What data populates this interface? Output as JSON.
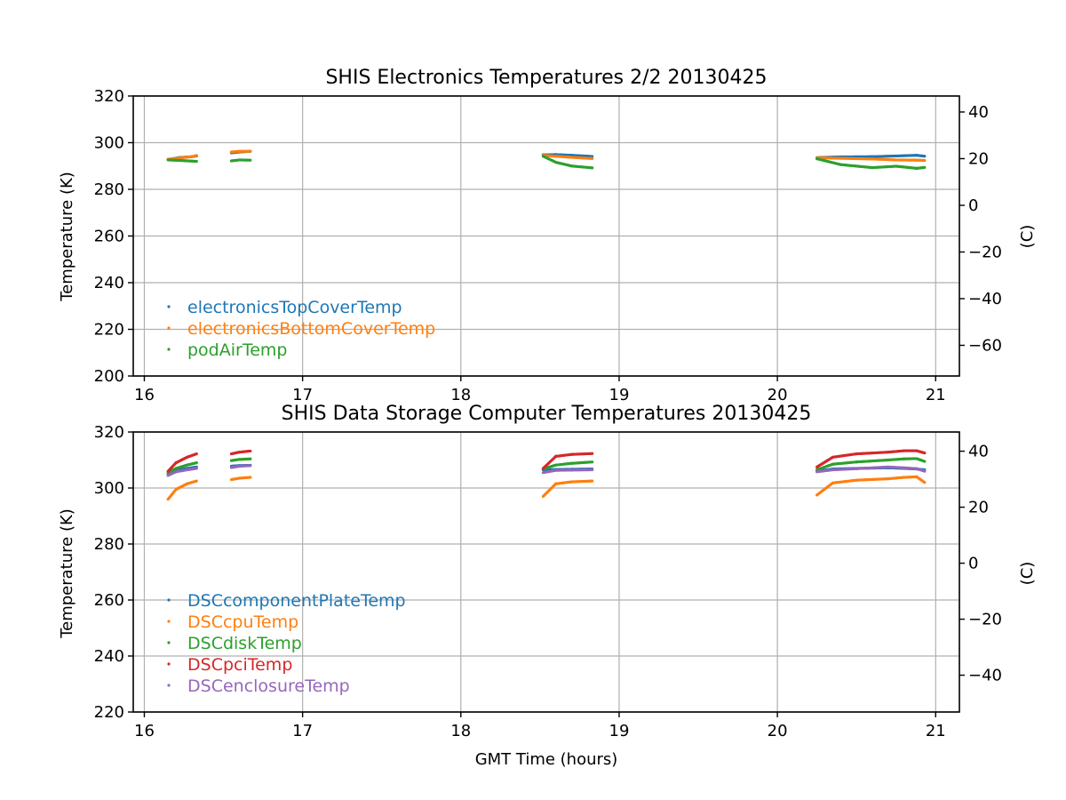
{
  "chart_data": [
    {
      "type": "scatter",
      "title": "SHIS Electronics Temperatures 2/2 20130425",
      "xlabel": "",
      "ylabel": "Temperature (K)",
      "ylabel_right": "(C)",
      "xlim": [
        15.93,
        21.15
      ],
      "ylim": [
        200,
        320
      ],
      "xticks": [
        "16",
        "17",
        "18",
        "19",
        "20",
        "21"
      ],
      "yticks": [
        "200",
        "220",
        "240",
        "260",
        "280",
        "300",
        "320"
      ],
      "yticks_right": [
        "−60",
        "−40",
        "−20",
        "0",
        "20",
        "40"
      ],
      "grid": true,
      "legend_position": "lower-left",
      "series": [
        {
          "name": "electronicsTopCoverTemp",
          "color": "#1f77b4",
          "segments": [
            [
              [
                16.15,
                292.8
              ],
              [
                16.22,
                293.6
              ],
              [
                16.3,
                294.0
              ],
              [
                16.33,
                294.3
              ]
            ],
            [
              [
                16.55,
                295.6
              ],
              [
                16.6,
                296.0
              ],
              [
                16.67,
                296.3
              ]
            ],
            [
              [
                18.52,
                294.8
              ],
              [
                18.6,
                294.9
              ],
              [
                18.7,
                294.6
              ],
              [
                18.83,
                294.1
              ]
            ],
            [
              [
                20.25,
                293.6
              ],
              [
                20.4,
                293.9
              ],
              [
                20.6,
                294.0
              ],
              [
                20.75,
                294.3
              ],
              [
                20.88,
                294.6
              ],
              [
                20.93,
                294.2
              ]
            ]
          ]
        },
        {
          "name": "electronicsBottomCoverTemp",
          "color": "#ff7f0e",
          "segments": [
            [
              [
                16.15,
                292.9
              ],
              [
                16.22,
                293.4
              ],
              [
                16.3,
                294.0
              ],
              [
                16.33,
                294.5
              ]
            ],
            [
              [
                16.55,
                296.0
              ],
              [
                16.6,
                296.3
              ],
              [
                16.67,
                296.3
              ]
            ],
            [
              [
                18.52,
                294.6
              ],
              [
                18.6,
                294.2
              ],
              [
                18.7,
                293.7
              ],
              [
                18.83,
                293.2
              ]
            ],
            [
              [
                20.25,
                293.5
              ],
              [
                20.4,
                293.3
              ],
              [
                20.6,
                293.0
              ],
              [
                20.75,
                292.6
              ],
              [
                20.88,
                292.5
              ],
              [
                20.93,
                292.4
              ]
            ]
          ]
        },
        {
          "name": "podAirTemp",
          "color": "#2ca02c",
          "segments": [
            [
              [
                16.15,
                292.6
              ],
              [
                16.22,
                292.4
              ],
              [
                16.3,
                292.1
              ],
              [
                16.33,
                292.0
              ]
            ],
            [
              [
                16.55,
                292.2
              ],
              [
                16.6,
                292.6
              ],
              [
                16.67,
                292.5
              ]
            ],
            [
              [
                18.52,
                294.2
              ],
              [
                18.6,
                291.6
              ],
              [
                18.7,
                290.0
              ],
              [
                18.83,
                289.2
              ]
            ],
            [
              [
                20.25,
                293.1
              ],
              [
                20.4,
                290.6
              ],
              [
                20.6,
                289.3
              ],
              [
                20.75,
                289.9
              ],
              [
                20.88,
                289.0
              ],
              [
                20.93,
                289.4
              ]
            ]
          ]
        }
      ]
    },
    {
      "type": "scatter",
      "title": "SHIS Data Storage Computer Temperatures 20130425",
      "xlabel": "GMT Time (hours)",
      "ylabel": "Temperature (K)",
      "ylabel_right": "(C)",
      "xlim": [
        15.93,
        21.15
      ],
      "ylim": [
        220,
        320
      ],
      "xticks": [
        "16",
        "17",
        "18",
        "19",
        "20",
        "21"
      ],
      "yticks": [
        "220",
        "240",
        "260",
        "280",
        "300",
        "320"
      ],
      "yticks_right": [
        "−40",
        "−20",
        "0",
        "20",
        "40"
      ],
      "grid": true,
      "legend_position": "lower-left",
      "series": [
        {
          "name": "DSCcomponentPlateTemp",
          "color": "#1f77b4",
          "segments": [
            [
              [
                16.15,
                305.0
              ],
              [
                16.2,
                306.3
              ],
              [
                16.27,
                307.0
              ],
              [
                16.33,
                307.5
              ]
            ],
            [
              [
                16.55,
                307.8
              ],
              [
                16.6,
                308.0
              ],
              [
                16.67,
                308.1
              ]
            ],
            [
              [
                18.52,
                306.5
              ],
              [
                18.6,
                306.6
              ],
              [
                18.7,
                306.7
              ],
              [
                18.83,
                306.8
              ]
            ],
            [
              [
                20.25,
                306.0
              ],
              [
                20.35,
                306.8
              ],
              [
                20.5,
                307.0
              ],
              [
                20.7,
                307.2
              ],
              [
                20.8,
                307.0
              ],
              [
                20.88,
                306.8
              ],
              [
                20.93,
                306.5
              ]
            ]
          ]
        },
        {
          "name": "DSCcpuTemp",
          "color": "#ff7f0e",
          "segments": [
            [
              [
                16.15,
                296.0
              ],
              [
                16.2,
                299.5
              ],
              [
                16.27,
                301.5
              ],
              [
                16.33,
                302.5
              ]
            ],
            [
              [
                16.55,
                303.0
              ],
              [
                16.6,
                303.5
              ],
              [
                16.67,
                303.8
              ]
            ],
            [
              [
                18.52,
                297.0
              ],
              [
                18.6,
                301.5
              ],
              [
                18.7,
                302.2
              ],
              [
                18.83,
                302.5
              ]
            ],
            [
              [
                20.25,
                297.5
              ],
              [
                20.35,
                301.8
              ],
              [
                20.5,
                302.8
              ],
              [
                20.7,
                303.3
              ],
              [
                20.8,
                303.8
              ],
              [
                20.88,
                304.0
              ],
              [
                20.93,
                302.0
              ]
            ]
          ]
        },
        {
          "name": "DSCdiskTemp",
          "color": "#2ca02c",
          "segments": [
            [
              [
                16.15,
                305.5
              ],
              [
                16.2,
                307.0
              ],
              [
                16.27,
                308.2
              ],
              [
                16.33,
                309.0
              ]
            ],
            [
              [
                16.55,
                309.8
              ],
              [
                16.6,
                310.2
              ],
              [
                16.67,
                310.4
              ]
            ],
            [
              [
                18.52,
                306.8
              ],
              [
                18.6,
                308.2
              ],
              [
                18.7,
                308.8
              ],
              [
                18.83,
                309.3
              ]
            ],
            [
              [
                20.25,
                306.5
              ],
              [
                20.35,
                308.5
              ],
              [
                20.5,
                309.3
              ],
              [
                20.7,
                310.0
              ],
              [
                20.8,
                310.4
              ],
              [
                20.88,
                310.5
              ],
              [
                20.93,
                309.5
              ]
            ]
          ]
        },
        {
          "name": "DSCpciTemp",
          "color": "#d62728",
          "segments": [
            [
              [
                16.15,
                306.0
              ],
              [
                16.2,
                309.0
              ],
              [
                16.27,
                311.0
              ],
              [
                16.33,
                312.2
              ]
            ],
            [
              [
                16.55,
                312.2
              ],
              [
                16.6,
                312.8
              ],
              [
                16.67,
                313.2
              ]
            ],
            [
              [
                18.52,
                307.0
              ],
              [
                18.6,
                311.3
              ],
              [
                18.7,
                312.0
              ],
              [
                18.83,
                312.3
              ]
            ],
            [
              [
                20.25,
                307.5
              ],
              [
                20.35,
                311.0
              ],
              [
                20.5,
                312.2
              ],
              [
                20.7,
                312.8
              ],
              [
                20.8,
                313.3
              ],
              [
                20.88,
                313.3
              ],
              [
                20.93,
                312.5
              ]
            ]
          ]
        },
        {
          "name": "DSCenclosureTemp",
          "color": "#9467bd",
          "segments": [
            [
              [
                16.15,
                304.5
              ],
              [
                16.2,
                305.8
              ],
              [
                16.27,
                306.5
              ],
              [
                16.33,
                307.0
              ]
            ],
            [
              [
                16.55,
                307.3
              ],
              [
                16.6,
                307.8
              ],
              [
                16.67,
                308.0
              ]
            ],
            [
              [
                18.52,
                305.5
              ],
              [
                18.6,
                306.3
              ],
              [
                18.7,
                306.4
              ],
              [
                18.83,
                306.5
              ]
            ],
            [
              [
                20.25,
                305.8
              ],
              [
                20.35,
                306.5
              ],
              [
                20.5,
                306.9
              ],
              [
                20.7,
                307.5
              ],
              [
                20.8,
                307.2
              ],
              [
                20.88,
                306.9
              ],
              [
                20.93,
                306.0
              ]
            ]
          ]
        }
      ]
    }
  ]
}
